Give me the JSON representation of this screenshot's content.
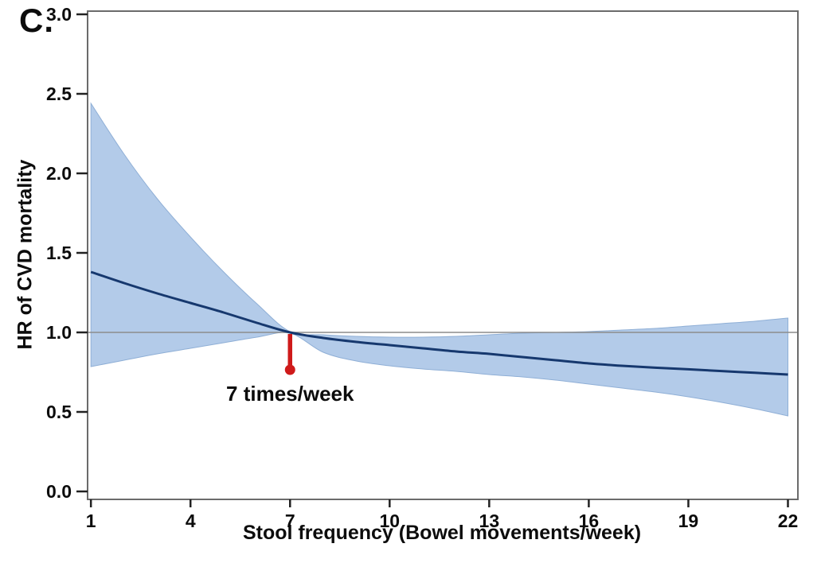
{
  "panel_label": "C.",
  "chart_data": {
    "type": "line",
    "title": "",
    "xlabel": "Stool frequency (Bowel movements/week)",
    "ylabel": "HR of CVD mortality",
    "xlim": [
      0.9,
      22.3
    ],
    "ylim": [
      -0.05,
      3.02
    ],
    "x_ticks": [
      1,
      4,
      7,
      10,
      13,
      16,
      19,
      22
    ],
    "x_tick_labels": [
      "1",
      "4",
      "7",
      "10",
      "13",
      "16",
      "19",
      "22"
    ],
    "y_ticks": [
      3.0,
      2.5,
      2.0,
      1.5,
      1.0,
      0.5,
      0.0
    ],
    "y_tick_labels": [
      "3.0",
      "2.5",
      "2.0",
      "1.5",
      "1.0",
      "0.5",
      "0.0"
    ],
    "grid": false,
    "legend": null,
    "reference_line_y": 1.0,
    "x": [
      1,
      2,
      3,
      4,
      5,
      6,
      7,
      8,
      9,
      10,
      11,
      12,
      13,
      14,
      15,
      16,
      17,
      18,
      19,
      20,
      21,
      22
    ],
    "series": [
      {
        "name": "HR estimate (spline)",
        "values": [
          1.38,
          1.31,
          1.245,
          1.185,
          1.125,
          1.06,
          1.0,
          0.965,
          0.94,
          0.92,
          0.9,
          0.88,
          0.865,
          0.845,
          0.825,
          0.805,
          0.79,
          0.778,
          0.768,
          0.757,
          0.746,
          0.735
        ]
      },
      {
        "name": "95% CI upper bound",
        "values": [
          2.44,
          2.12,
          1.84,
          1.6,
          1.38,
          1.18,
          1.005,
          0.985,
          0.975,
          0.97,
          0.97,
          0.975,
          0.985,
          0.995,
          1.0,
          1.005,
          1.015,
          1.025,
          1.04,
          1.055,
          1.07,
          1.09
        ]
      },
      {
        "name": "95% CI lower bound",
        "values": [
          0.785,
          0.825,
          0.865,
          0.9,
          0.935,
          0.97,
          0.995,
          0.875,
          0.82,
          0.79,
          0.77,
          0.755,
          0.735,
          0.72,
          0.7,
          0.675,
          0.65,
          0.625,
          0.595,
          0.56,
          0.52,
          0.475
        ]
      }
    ],
    "annotation": {
      "label": "7 times/week",
      "x": 7,
      "marker_from_hr": 1.0,
      "marker_to_hr": 0.79,
      "marker_dot_hr": 0.765
    },
    "colors": {
      "band": "#b3cbe9",
      "band_edge": "#8fafd6",
      "curve": "#16386e",
      "reference": "#8c8c8c",
      "marker": "#cf1a1a",
      "frame": "#6b6b6b",
      "text": "#0c0c0c"
    }
  }
}
